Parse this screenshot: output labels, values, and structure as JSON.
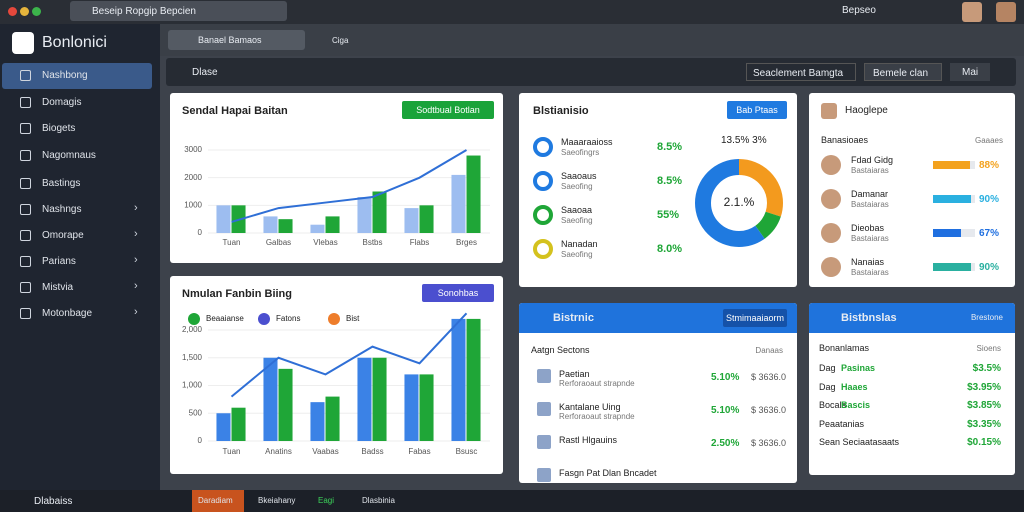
{
  "topbar": {
    "tab": "Beseip Ropgip Bepcien",
    "user": "Bepseo"
  },
  "sidebar": {
    "brand": "Bonlonici",
    "items": [
      "Nashbong",
      "Domagis",
      "Biogets",
      "Nagomnaus",
      "Bastings",
      "Nashngs",
      "Omorape",
      "Parians",
      "Mistvia",
      "Motonbage"
    ]
  },
  "toolbar": {
    "search": "Banael Bamaos",
    "search2": "Ciga"
  },
  "filterbar": {
    "label": "Dlase",
    "select1": "Seaclement Bamgta",
    "select2": "Bemele clan",
    "button": "Mai"
  },
  "sales_chart": {
    "title": "Sendal Hapai Baitan",
    "button": "Sodtbual Botlan",
    "categories": [
      "Tuan",
      "Galbas",
      "Vlebas",
      "Bstbs",
      "Flabs",
      "Brges"
    ],
    "series": [
      {
        "color": "#9dbdf0",
        "values": [
          1000,
          600,
          300,
          1300,
          900,
          2100
        ]
      },
      {
        "color": "#1fa637",
        "values": [
          1000,
          500,
          600,
          1500,
          1000,
          2800
        ]
      }
    ],
    "line": {
      "color": "#2f6fd6",
      "values": [
        400,
        900,
        1100,
        1300,
        2000,
        3000
      ]
    },
    "ylim": [
      0,
      3000
    ],
    "yticks": [
      0,
      1000,
      2000,
      3000
    ]
  },
  "revenue_chart": {
    "title": "Nmulan Fanbin Biing",
    "button": "Sonohbas",
    "legend": [
      {
        "name": "Beaaianse",
        "color": "#1fa637"
      },
      {
        "name": "Fatons",
        "color": "#4b4fcf"
      },
      {
        "name": "Bist",
        "color": "#ee7d2b"
      }
    ],
    "categories": [
      "Tuan",
      "Anatins",
      "Vaabas",
      "Badss",
      "Fabas",
      "Bsusc"
    ],
    "series": [
      {
        "color": "#3b82e6",
        "values": [
          500,
          1500,
          700,
          1500,
          1200,
          2200
        ]
      },
      {
        "color": "#1fa637",
        "values": [
          600,
          1300,
          800,
          1500,
          1200,
          2200
        ]
      }
    ],
    "line": {
      "color": "#2f6fd6",
      "values": [
        800,
        1500,
        1200,
        1700,
        1400,
        2300
      ]
    },
    "ylim": [
      0,
      2000
    ],
    "yticks": [
      0,
      500,
      {
        "value": 1000,
        "label": "1,000"
      },
      {
        "value": 1500,
        "label": "1,500"
      },
      {
        "value": 2000,
        "label": "2,000"
      }
    ]
  },
  "donut": {
    "title": "Blstianisio",
    "button": "Bab Ptaas",
    "header": "13.5% 3%",
    "center": "2.1.%",
    "items": [
      {
        "name": "Maaaraaioss",
        "sub": "Saeofingrs",
        "label": "8.5%"
      },
      {
        "name": "Saaoaus",
        "sub": "Saeofing",
        "label": "8.5%"
      },
      {
        "name": "Saaoaa",
        "sub": "Saeofing",
        "label": "55%"
      },
      {
        "name": "Nanadan",
        "sub": "Saeofing",
        "label": "8.0%"
      }
    ],
    "slices": [
      {
        "value": 30,
        "color": "#f39a1e"
      },
      {
        "value": 10,
        "color": "#1fa637"
      },
      {
        "value": 60,
        "color": "#1f7ae0"
      }
    ]
  },
  "people": {
    "title": "Haoglepe",
    "subtitle": "Banasioaes",
    "side": "Gaaaes",
    "rows": [
      {
        "name": "Fdad Gidg",
        "sub": "Bastaiaras",
        "progress": 88,
        "label": "88%",
        "color": "#f3a21e"
      },
      {
        "name": "Damanar",
        "sub": "Bastaiaras",
        "progress": 90,
        "label": "90%",
        "color": "#2ab0e0"
      },
      {
        "name": "Dieobas",
        "sub": "Bastaiaras",
        "progress": 67,
        "label": "67%",
        "color": "#1f6fe0"
      },
      {
        "name": "Nanaias",
        "sub": "Bastaiaras",
        "progress": 90,
        "label": "90%",
        "color": "#2ab0a0"
      }
    ]
  },
  "actions": {
    "title": "Bistrnic",
    "button": "Stmimaaiaorm",
    "subtitle": "Aatgn Sectons",
    "side": "Danaas",
    "rows": [
      {
        "name": "Paetian",
        "sub": "Rerforaoaut strapnde",
        "pct": "5.10%",
        "amt": "$ 3636.0"
      },
      {
        "name": "Kantalane Uing",
        "sub": "Rerforaoaut strapnde",
        "pct": "5.10%",
        "amt": "$ 3636.0"
      },
      {
        "name": "Rastl Hlgauins",
        "sub": "",
        "pct": "2.50%",
        "amt": "$ 3636.0"
      },
      {
        "name": "Fasgn Pat Dlan Bncadet",
        "sub": "",
        "pct": "",
        "amt": ""
      }
    ]
  },
  "stats": {
    "title": "Bistbnslas",
    "button": "Brestone",
    "subtitle": "Bonanlamas",
    "side": "Sioens",
    "rows": [
      {
        "name": "Dag",
        "tag": "Pasinas",
        "val": "$3.5%"
      },
      {
        "name": "Dag",
        "tag": "Haaes",
        "val": "$3.95%"
      },
      {
        "name": "Bocals",
        "tag": "Bascis",
        "val": "$3.85%"
      },
      {
        "name": "Peaatanias",
        "tag": "",
        "val": "$3.35%"
      },
      {
        "name": "Sean Seciaatasaats",
        "tag": "",
        "val": "$0.15%"
      }
    ]
  },
  "bottombar": {
    "left": "Dlabaiss",
    "tabs": [
      "Daradiam",
      "Bkeiahany",
      "Eagi",
      "Dlasbinia"
    ]
  }
}
